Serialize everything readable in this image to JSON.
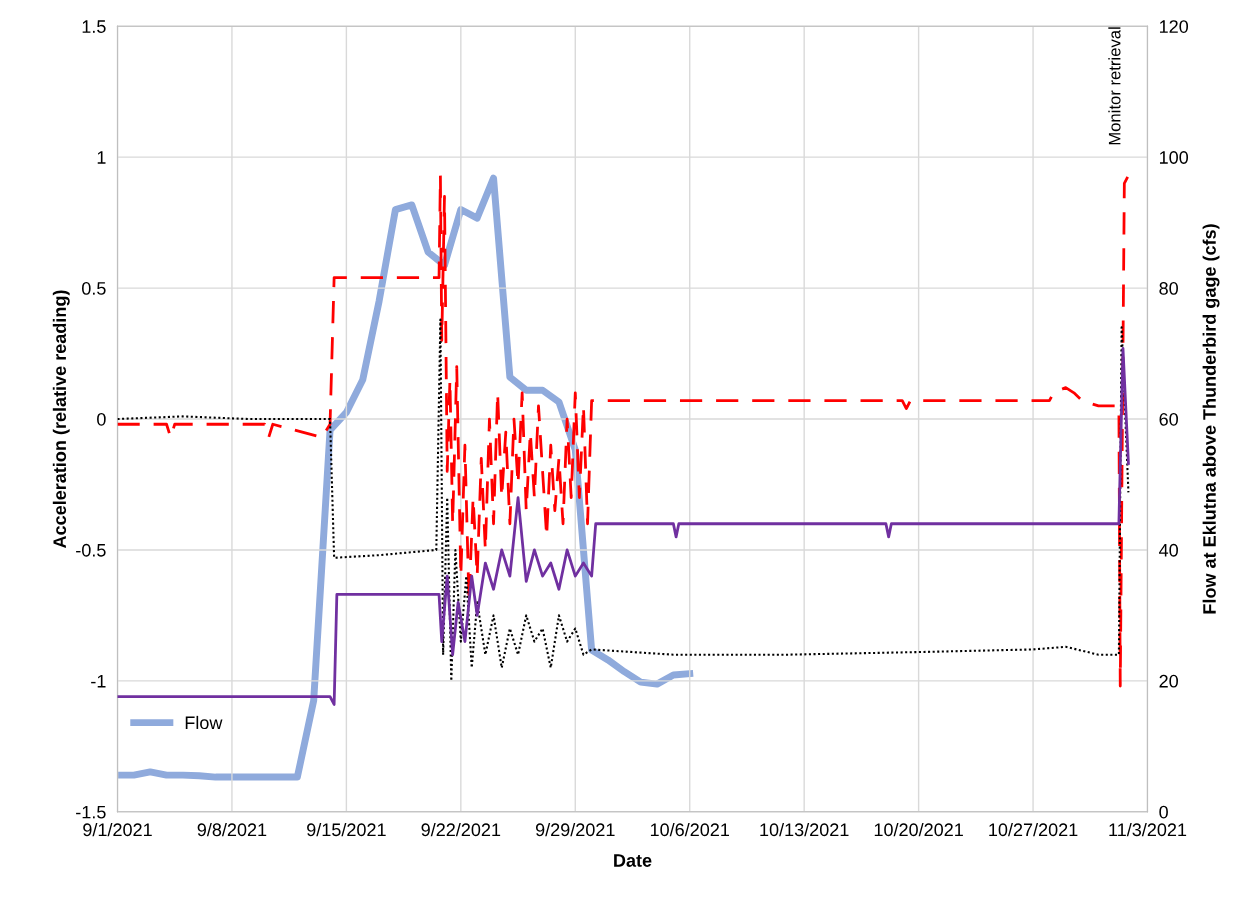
{
  "chart_data": {
    "type": "line",
    "xlabel": "Date",
    "ylabel": "Acceleration (relative reading)",
    "y2label": "Flow at Eklutna above Thunderbird gage (cfs)",
    "xlim": [
      "2021-09-01",
      "2021-11-03"
    ],
    "xticks": [
      {
        "value": "2021-09-01",
        "label": "9/1/2021"
      },
      {
        "value": "2021-09-08",
        "label": "9/8/2021"
      },
      {
        "value": "2021-09-15",
        "label": "9/15/2021"
      },
      {
        "value": "2021-09-22",
        "label": "9/22/2021"
      },
      {
        "value": "2021-09-29",
        "label": "9/29/2021"
      },
      {
        "value": "2021-10-06",
        "label": "10/6/2021"
      },
      {
        "value": "2021-10-13",
        "label": "10/13/2021"
      },
      {
        "value": "2021-10-20",
        "label": "10/20/2021"
      },
      {
        "value": "2021-10-27",
        "label": "10/27/2021"
      },
      {
        "value": "2021-11-03",
        "label": "11/3/2021"
      }
    ],
    "ylim": [
      -1.5,
      1.5
    ],
    "yticks": [
      -1.5,
      -1,
      -0.5,
      0,
      0.5,
      1,
      1.5
    ],
    "y2lim": [
      0,
      120
    ],
    "y2ticks": [
      0,
      20,
      40,
      60,
      80,
      100,
      120
    ],
    "grid": true,
    "legend": "bottom left",
    "annotations": [
      "Monitor retrieval"
    ],
    "series": [
      {
        "color": "#ff0000",
        "line_style": "dashed",
        "x": [
          "2021-09-01",
          "2021-09-04",
          "2021-09-04T06:00",
          "2021-09-04T12:00",
          "2021-09-10",
          "2021-09-10T06:00",
          "2021-09-10T12:00",
          "2021-09-13T12:00",
          "2021-09-14T00:00",
          "2021-09-14T06:00",
          "2021-09-20T16:00",
          "2021-09-20T18:00",
          "2021-09-20T20:00",
          "2021-09-21T00:00",
          "2021-09-21T04:00",
          "2021-09-21T08:00",
          "2021-09-21T12:00",
          "2021-09-21T18:00",
          "2021-09-22T00:00",
          "2021-09-22T06:00",
          "2021-09-22T12:00",
          "2021-09-22T18:00",
          "2021-09-23T00:00",
          "2021-09-23T06:00",
          "2021-09-23T12:00",
          "2021-09-23T18:00",
          "2021-09-24T00:00",
          "2021-09-24T06:00",
          "2021-09-24T12:00",
          "2021-09-24T18:00",
          "2021-09-25T00:00",
          "2021-09-25T06:00",
          "2021-09-25T12:00",
          "2021-09-25T18:00",
          "2021-09-26T00:00",
          "2021-09-26T06:00",
          "2021-09-26T12:00",
          "2021-09-26T18:00",
          "2021-09-27T00:00",
          "2021-09-27T06:00",
          "2021-09-27T12:00",
          "2021-09-27T18:00",
          "2021-09-28T00:00",
          "2021-09-28T06:00",
          "2021-09-28T12:00",
          "2021-09-28T18:00",
          "2021-09-29T00:00",
          "2021-09-29T06:00",
          "2021-09-29T12:00",
          "2021-09-29T18:00",
          "2021-09-30T00:00",
          "2021-10-19",
          "2021-10-19T06:00",
          "2021-10-19T12:00",
          "2021-10-28",
          "2021-10-28T06:00",
          "2021-10-29",
          "2021-10-29T12:00",
          "2021-10-30",
          "2021-10-31",
          "2021-11-01T06:00",
          "2021-11-01T08:00",
          "2021-11-01T14:00",
          "2021-11-01T20:00"
        ],
        "values": [
          -0.02,
          -0.02,
          -0.07,
          -0.02,
          -0.02,
          -0.07,
          -0.02,
          -0.07,
          -0.02,
          0.54,
          0.54,
          0.93,
          0.3,
          0.85,
          -0.2,
          0.15,
          -0.4,
          0.2,
          -0.6,
          -0.1,
          -0.7,
          -0.3,
          -0.6,
          -0.15,
          -0.5,
          0.0,
          -0.4,
          0.1,
          -0.3,
          -0.05,
          -0.4,
          0.0,
          -0.25,
          0.1,
          -0.35,
          -0.05,
          -0.3,
          0.05,
          -0.2,
          -0.45,
          -0.1,
          -0.35,
          -0.15,
          -0.4,
          0.0,
          -0.3,
          0.1,
          -0.3,
          0.05,
          -0.4,
          0.07,
          0.07,
          0.04,
          0.07,
          0.07,
          0.1,
          0.12,
          0.1,
          0.07,
          0.05,
          0.05,
          -1.02,
          0.9,
          0.93
        ]
      },
      {
        "color": "#000000",
        "line_style": "dotted",
        "x": [
          "2021-09-01",
          "2021-09-05",
          "2021-09-09",
          "2021-09-14T00:00",
          "2021-09-14T06:00",
          "2021-09-17",
          "2021-09-20T12:00",
          "2021-09-20T18:00",
          "2021-09-20T22:00",
          "2021-09-21T04:00",
          "2021-09-21T10:00",
          "2021-09-21T16:00",
          "2021-09-22T00:00",
          "2021-09-22T08:00",
          "2021-09-22T16:00",
          "2021-09-23T00:00",
          "2021-09-23T12:00",
          "2021-09-24T00:00",
          "2021-09-24T12:00",
          "2021-09-25T00:00",
          "2021-09-25T12:00",
          "2021-09-26T00:00",
          "2021-09-26T12:00",
          "2021-09-27T00:00",
          "2021-09-27T12:00",
          "2021-09-28T00:00",
          "2021-09-28T12:00",
          "2021-09-29T00:00",
          "2021-09-29T12:00",
          "2021-09-30T00:00",
          "2021-10-05",
          "2021-10-12",
          "2021-10-20",
          "2021-10-27",
          "2021-10-29",
          "2021-10-31",
          "2021-11-01T06:00",
          "2021-11-01T10:00",
          "2021-11-01T20:00"
        ],
        "values": [
          0.0,
          0.01,
          0.0,
          0.0,
          -0.53,
          -0.52,
          -0.5,
          0.38,
          -0.9,
          -0.3,
          -1.0,
          -0.5,
          -0.85,
          -0.6,
          -0.95,
          -0.7,
          -0.9,
          -0.75,
          -0.95,
          -0.8,
          -0.9,
          -0.75,
          -0.85,
          -0.8,
          -0.95,
          -0.75,
          -0.85,
          -0.8,
          -0.9,
          -0.88,
          -0.9,
          -0.9,
          -0.89,
          -0.88,
          -0.87,
          -0.9,
          -0.9,
          0.35,
          -0.28
        ]
      },
      {
        "color": "#7030a0",
        "line_style": "solid",
        "x": [
          "2021-09-01",
          "2021-09-07",
          "2021-09-13T00:00",
          "2021-09-14T00:00",
          "2021-09-14T06:00",
          "2021-09-14T10:00",
          "2021-09-20T16:00",
          "2021-09-20T20:00",
          "2021-09-21T04:00",
          "2021-09-21T12:00",
          "2021-09-21T20:00",
          "2021-09-22T06:00",
          "2021-09-22T16:00",
          "2021-09-23T00:00",
          "2021-09-23T12:00",
          "2021-09-24T00:00",
          "2021-09-24T12:00",
          "2021-09-25T00:00",
          "2021-09-25T12:00",
          "2021-09-26T00:00",
          "2021-09-26T12:00",
          "2021-09-27T00:00",
          "2021-09-27T12:00",
          "2021-09-28T00:00",
          "2021-09-28T12:00",
          "2021-09-29T00:00",
          "2021-09-29T12:00",
          "2021-09-30T00:00",
          "2021-09-30T06:00",
          "2021-10-05",
          "2021-10-05T04:00",
          "2021-10-05T08:00",
          "2021-10-18",
          "2021-10-18T04:00",
          "2021-10-18T08:00",
          "2021-10-30",
          "2021-11-01T06:00",
          "2021-11-01T12:00",
          "2021-11-01T20:00"
        ],
        "values": [
          -1.06,
          -1.06,
          -1.06,
          -1.06,
          -1.09,
          -0.67,
          -0.67,
          -0.85,
          -0.6,
          -0.9,
          -0.7,
          -0.85,
          -0.6,
          -0.75,
          -0.55,
          -0.65,
          -0.5,
          -0.6,
          -0.3,
          -0.62,
          -0.5,
          -0.6,
          -0.55,
          -0.65,
          -0.5,
          -0.6,
          -0.55,
          -0.6,
          -0.4,
          -0.4,
          -0.45,
          -0.4,
          -0.4,
          -0.45,
          -0.4,
          -0.4,
          -0.4,
          0.27,
          -0.17
        ]
      },
      {
        "name": "Flow",
        "color": "#8faadc",
        "line_style": "solid",
        "axis": "y2",
        "x": [
          "2021-09-01",
          "2021-09-02",
          "2021-09-03",
          "2021-09-04",
          "2021-09-05",
          "2021-09-06",
          "2021-09-07",
          "2021-09-12",
          "2021-09-13",
          "2021-09-14",
          "2021-09-15",
          "2021-09-16",
          "2021-09-17",
          "2021-09-18",
          "2021-09-19",
          "2021-09-20",
          "2021-09-21",
          "2021-09-22",
          "2021-09-23",
          "2021-09-24",
          "2021-09-25",
          "2021-09-26",
          "2021-09-27",
          "2021-09-28",
          "2021-09-29",
          "2021-09-30",
          "2021-10-01",
          "2021-10-02",
          "2021-10-03",
          "2021-10-04",
          "2021-10-05",
          "2021-10-06"
        ],
        "values": [
          5.6,
          5.6,
          6.1,
          5.6,
          5.6,
          5.5,
          5.3,
          5.3,
          17,
          58.3,
          61,
          66,
          78,
          92,
          92.7,
          85.5,
          83.5,
          92,
          90.7,
          96.8,
          66.4,
          64.4,
          64.4,
          62.6,
          55.3,
          24.7,
          23.2,
          21.4,
          19.8,
          19.5,
          20.9,
          21.1
        ]
      }
    ]
  }
}
